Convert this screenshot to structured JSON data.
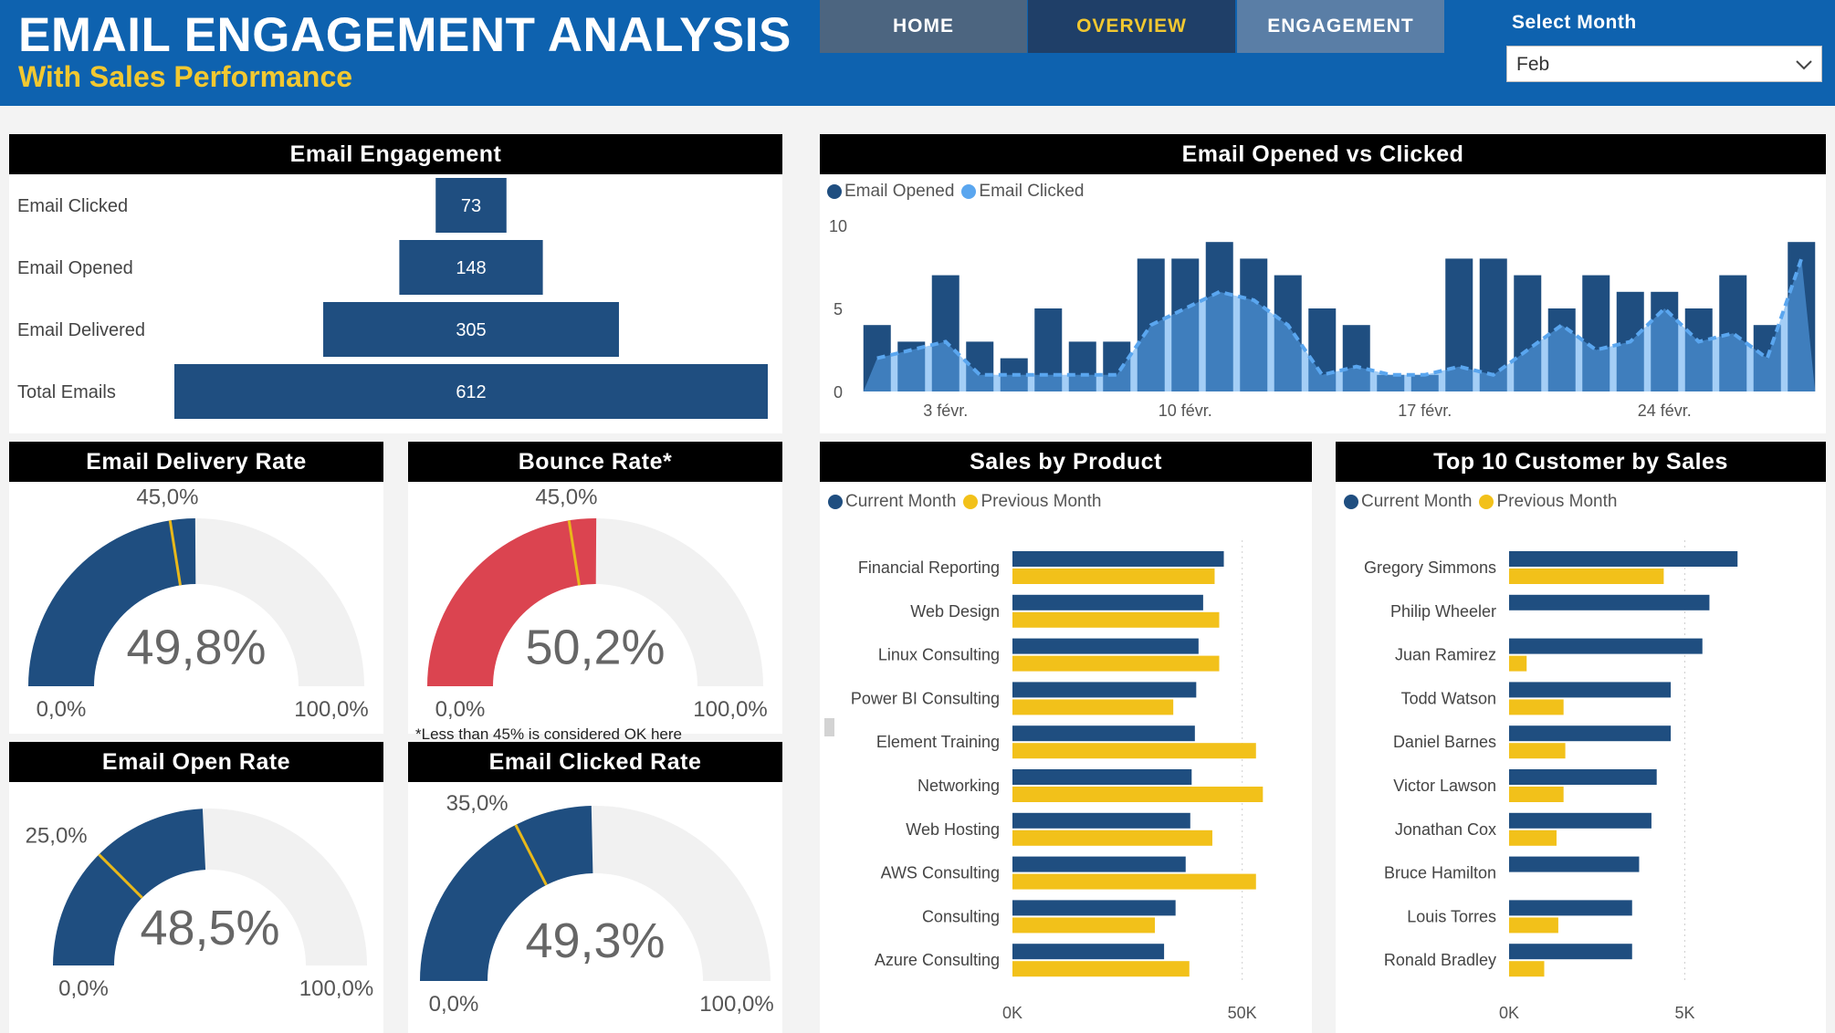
{
  "header": {
    "title": "EMAIL ENGAGEMENT ANALYSIS",
    "subtitle": "With Sales Performance",
    "nav": {
      "home": "HOME",
      "overview": "OVERVIEW",
      "engagement": "ENGAGEMENT"
    },
    "month_label": "Select Month",
    "month_value": "Feb"
  },
  "colors": {
    "header_bg": "#0e62af",
    "accent_yellow": "#f2c830",
    "navy": "#1f4e80",
    "light_blue": "#5aa6ef",
    "bounce_red": "#db4450",
    "track_gray": "#f1f1f1"
  },
  "icons": {
    "dropdown": "chevron-down-icon",
    "legend_marker": "circle-icon"
  },
  "chart_data": [
    {
      "id": "funnel",
      "type": "bar",
      "title": "Email Engagement",
      "categories": [
        "Email Clicked",
        "Email Opened",
        "Email Delivered",
        "Total Emails"
      ],
      "values": [
        73,
        148,
        305,
        612
      ],
      "value_labels": [
        "73",
        "148",
        "305",
        "612"
      ]
    },
    {
      "id": "delivery_gauge",
      "type": "gauge",
      "title": "Email Delivery Rate",
      "value": 49.8,
      "value_label": "49,8%",
      "target": 45.0,
      "target_label": "45,0%",
      "min": 0,
      "min_label": "0,0%",
      "max": 100,
      "max_label": "100,0%"
    },
    {
      "id": "bounce_gauge",
      "type": "gauge",
      "title": "Bounce Rate*",
      "value": 50.2,
      "value_label": "50,2%",
      "target": 45.0,
      "target_label": "45,0%",
      "min": 0,
      "min_label": "0,0%",
      "max": 100,
      "max_label": "100,0%",
      "note": "*Less than 45% is considered OK here"
    },
    {
      "id": "open_gauge",
      "type": "gauge",
      "title": "Email Open Rate",
      "value": 48.5,
      "value_label": "48,5%",
      "target": 25.0,
      "target_label": "25,0%",
      "min": 0,
      "min_label": "0,0%",
      "max": 100,
      "max_label": "100,0%"
    },
    {
      "id": "clicked_gauge",
      "type": "gauge",
      "title": "Email Clicked Rate",
      "value": 49.3,
      "value_label": "49,3%",
      "target": 35.0,
      "target_label": "35,0%",
      "min": 0,
      "min_label": "0,0%",
      "max": 100,
      "max_label": "100,0%"
    },
    {
      "id": "opened_clicked",
      "type": "bar",
      "title": "Email Opened vs Clicked",
      "x": [
        1,
        2,
        3,
        4,
        5,
        6,
        7,
        8,
        9,
        10,
        11,
        12,
        13,
        14,
        15,
        16,
        17,
        18,
        19,
        20,
        21,
        22,
        23,
        24,
        25,
        26,
        27,
        28
      ],
      "series": [
        {
          "name": "Email Opened",
          "type": "bar",
          "values": [
            4,
            3,
            7,
            3,
            2,
            5,
            3,
            3,
            8,
            8,
            9,
            8,
            7,
            5,
            4,
            1,
            1,
            8,
            8,
            7,
            5,
            7,
            6,
            6,
            5,
            7,
            4,
            9
          ]
        },
        {
          "name": "Email Clicked",
          "type": "area",
          "values": [
            2,
            2.5,
            3,
            1,
            1,
            1,
            1,
            1,
            4,
            5,
            6,
            5.5,
            4,
            1,
            1.5,
            1,
            1,
            1.5,
            1,
            2.5,
            4,
            2.5,
            3,
            5,
            3,
            3.5,
            2,
            8
          ]
        }
      ],
      "xticks": [
        "3 févr.",
        "10 févr.",
        "17 févr.",
        "24 févr."
      ],
      "xtick_days": [
        3,
        10,
        17,
        24
      ],
      "yticks": [
        0,
        5,
        10
      ],
      "ylim": [
        0,
        10
      ]
    },
    {
      "id": "sales_product",
      "type": "bar",
      "title": "Sales by Product",
      "orientation": "horizontal",
      "categories": [
        "Financial Reporting",
        "Web Design",
        "Linux Consulting",
        "Power BI Consulting",
        "Element Training",
        "Networking",
        "Web Hosting",
        "AWS Consulting",
        "Consulting",
        "Azure Consulting"
      ],
      "series": [
        {
          "name": "Current Month",
          "values": [
            46000,
            41500,
            40500,
            40000,
            39700,
            39000,
            38700,
            37700,
            35500,
            33000
          ]
        },
        {
          "name": "Previous Month",
          "values": [
            44000,
            45000,
            45000,
            35000,
            53000,
            54500,
            43500,
            53000,
            31000,
            38500
          ]
        }
      ],
      "xticks": [
        "0K",
        "50K"
      ],
      "xtick_values": [
        0,
        50000
      ],
      "xlim": [
        0,
        60000
      ]
    },
    {
      "id": "top_customers",
      "type": "bar",
      "title": "Top 10 Customer by Sales",
      "orientation": "horizontal",
      "categories": [
        "Gregory Simmons",
        "Philip Wheeler",
        "Juan Ramirez",
        "Todd Watson",
        "Daniel Barnes",
        "Victor Lawson",
        "Jonathan Cox",
        "Bruce Hamilton",
        "Louis Torres",
        "Ronald Bradley"
      ],
      "series": [
        {
          "name": "Current Month",
          "values": [
            6500,
            5700,
            5500,
            4600,
            4600,
            4200,
            4050,
            3700,
            3500,
            3500
          ]
        },
        {
          "name": "Previous Month",
          "values": [
            4400,
            0,
            500,
            1550,
            1600,
            1550,
            1350,
            0,
            1400,
            1000
          ]
        }
      ],
      "xticks": [
        "0K",
        "5K"
      ],
      "xtick_values": [
        0,
        5000
      ],
      "xlim": [
        0,
        8000
      ]
    }
  ]
}
